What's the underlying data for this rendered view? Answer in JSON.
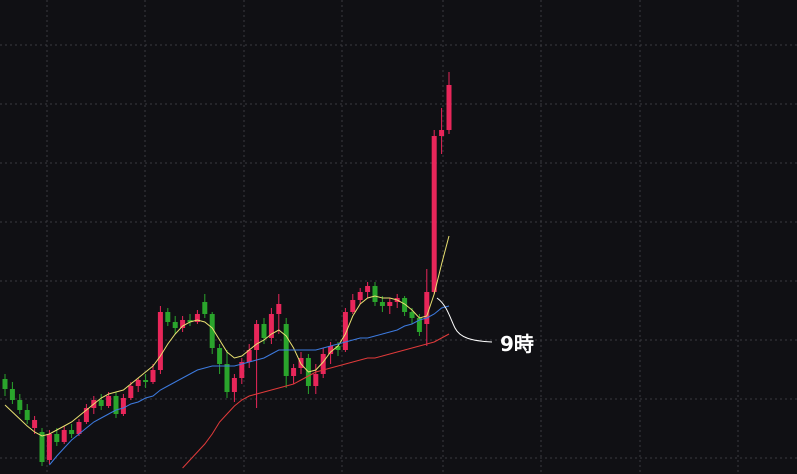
{
  "chart_data": {
    "type": "candlestick",
    "ylim": [
      0,
      474
    ],
    "up_color": "#e8265a",
    "down_color": "#2aa52c",
    "candles": [
      [
        95,
        100,
        78,
        85
      ],
      [
        85,
        92,
        70,
        74
      ],
      [
        74,
        80,
        60,
        64
      ],
      [
        64,
        70,
        50,
        54
      ],
      [
        46,
        58,
        40,
        54
      ],
      [
        42,
        46,
        8,
        12
      ],
      [
        14,
        44,
        10,
        40
      ],
      [
        40,
        46,
        28,
        32
      ],
      [
        32,
        48,
        30,
        44
      ],
      [
        44,
        50,
        36,
        40
      ],
      [
        40,
        55,
        38,
        52
      ],
      [
        52,
        70,
        50,
        66
      ],
      [
        66,
        78,
        60,
        74
      ],
      [
        74,
        80,
        64,
        68
      ],
      [
        68,
        82,
        66,
        78
      ],
      [
        78,
        82,
        56,
        60
      ],
      [
        60,
        80,
        58,
        76
      ],
      [
        76,
        92,
        74,
        88
      ],
      [
        88,
        96,
        82,
        94
      ],
      [
        94,
        100,
        86,
        92
      ],
      [
        92,
        110,
        90,
        104
      ],
      [
        104,
        168,
        100,
        162
      ],
      [
        162,
        166,
        148,
        152
      ],
      [
        152,
        158,
        140,
        146
      ],
      [
        146,
        158,
        142,
        154
      ],
      [
        154,
        160,
        148,
        152
      ],
      [
        152,
        164,
        150,
        160
      ],
      [
        172,
        180,
        156,
        160
      ],
      [
        160,
        162,
        120,
        126
      ],
      [
        126,
        130,
        100,
        110
      ],
      [
        110,
        124,
        76,
        82
      ],
      [
        82,
        100,
        72,
        96
      ],
      [
        96,
        116,
        90,
        112
      ],
      [
        112,
        130,
        106,
        124
      ],
      [
        124,
        154,
        66,
        150
      ],
      [
        150,
        156,
        130,
        136
      ],
      [
        136,
        166,
        130,
        160
      ],
      [
        160,
        180,
        140,
        170
      ],
      [
        150,
        156,
        86,
        98
      ],
      [
        98,
        110,
        90,
        106
      ],
      [
        106,
        122,
        100,
        116
      ],
      [
        116,
        120,
        80,
        88
      ],
      [
        88,
        110,
        80,
        100
      ],
      [
        100,
        126,
        96,
        120
      ],
      [
        120,
        132,
        110,
        128
      ],
      [
        128,
        132,
        118,
        124
      ],
      [
        124,
        166,
        122,
        162
      ],
      [
        162,
        180,
        160,
        174
      ],
      [
        174,
        186,
        170,
        182
      ],
      [
        182,
        192,
        176,
        188
      ],
      [
        188,
        192,
        168,
        172
      ],
      [
        172,
        178,
        162,
        168
      ],
      [
        168,
        176,
        160,
        172
      ],
      [
        172,
        180,
        166,
        176
      ],
      [
        176,
        178,
        158,
        162
      ],
      [
        162,
        166,
        150,
        156
      ],
      [
        156,
        160,
        138,
        142
      ],
      [
        150,
        205,
        128,
        182
      ],
      [
        182,
        344,
        180,
        338
      ],
      [
        338,
        366,
        320,
        344
      ],
      [
        344,
        402,
        340,
        389
      ]
    ],
    "series": [
      {
        "color": "#e8e070",
        "values": [
          69,
          62,
          55,
          48,
          42,
          38,
          40,
          44,
          48,
          52,
          58,
          64,
          70,
          76,
          80,
          82,
          84,
          90,
          96,
          102,
          108,
          118,
          130,
          140,
          148,
          152,
          154,
          152,
          146,
          134,
          122,
          116,
          118,
          124,
          130,
          134,
          140,
          144,
          138,
          126,
          110,
          102,
          104,
          112,
          122,
          128,
          140,
          158,
          170,
          176,
          178,
          176,
          176,
          174,
          170,
          164,
          156,
          158,
          180,
          210,
          238
        ]
      },
      {
        "color": "#3d7be0",
        "values": [
          null,
          null,
          null,
          null,
          null,
          null,
          9,
          18,
          26,
          34,
          40,
          46,
          52,
          56,
          60,
          64,
          66,
          70,
          72,
          76,
          78,
          84,
          88,
          92,
          96,
          100,
          104,
          106,
          108,
          108,
          108,
          108,
          110,
          112,
          114,
          116,
          120,
          124,
          124,
          124,
          124,
          124,
          124,
          126,
          128,
          130,
          132,
          134,
          136,
          136,
          138,
          140,
          142,
          144,
          148,
          150,
          154,
          156,
          160,
          166,
          168
        ]
      },
      {
        "color": "#e03a3a",
        "values": [
          null,
          null,
          null,
          null,
          null,
          null,
          null,
          null,
          null,
          null,
          null,
          null,
          null,
          null,
          null,
          null,
          null,
          null,
          null,
          null,
          null,
          null,
          null,
          null,
          6,
          14,
          22,
          30,
          40,
          52,
          60,
          68,
          74,
          78,
          80,
          82,
          84,
          86,
          88,
          90,
          94,
          98,
          102,
          104,
          106,
          108,
          110,
          112,
          114,
          116,
          116,
          118,
          120,
          122,
          124,
          126,
          128,
          130,
          132,
          136,
          140
        ]
      }
    ],
    "annotation": "9時"
  }
}
